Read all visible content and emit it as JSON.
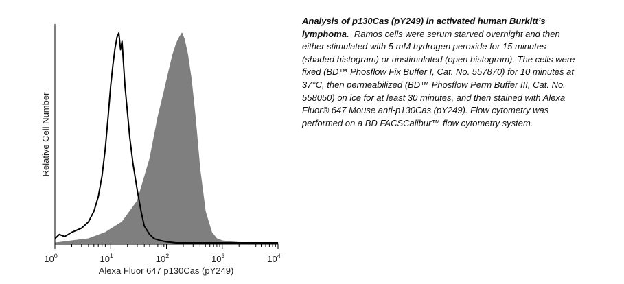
{
  "chart_data": {
    "type": "area",
    "title": "",
    "xlabel": "Alexa Fluor 647 p130Cas (pY249)",
    "ylabel": "Relative Cell Number",
    "xscale": "log",
    "xlim": [
      1,
      10000
    ],
    "x_tick_labels": [
      {
        "base": "10",
        "exp": "0"
      },
      {
        "base": "10",
        "exp": "1"
      },
      {
        "base": "10",
        "exp": "2"
      },
      {
        "base": "10",
        "exp": "3"
      },
      {
        "base": "10",
        "exp": "4"
      }
    ],
    "grid": false,
    "legend": "none",
    "colors": {
      "stimulated_fill": "#7f7f7f",
      "unstimulated_line": "#000000",
      "axis": "#000000"
    },
    "series": [
      {
        "style": "filled",
        "description_on_chart": "shaded histogram",
        "x": [
          1,
          2,
          4,
          8,
          16,
          30,
          50,
          70,
          90,
          110,
          130,
          150,
          170,
          190,
          210,
          240,
          280,
          330,
          400,
          500,
          650,
          800,
          1000,
          1500,
          2500,
          5000,
          10000
        ],
        "y": [
          0.0,
          0.01,
          0.02,
          0.05,
          0.1,
          0.2,
          0.4,
          0.6,
          0.72,
          0.82,
          0.9,
          0.95,
          0.98,
          1.0,
          0.97,
          0.9,
          0.78,
          0.6,
          0.35,
          0.15,
          0.05,
          0.02,
          0.01,
          0.005,
          0.0,
          0.0,
          0.0
        ]
      },
      {
        "style": "outline",
        "description_on_chart": "open histogram",
        "x": [
          1,
          1.2,
          1.5,
          2,
          3,
          4,
          5,
          6,
          7,
          8,
          9,
          10,
          11,
          12,
          13,
          14,
          15,
          16,
          17,
          18,
          20,
          22,
          25,
          30,
          35,
          40,
          50,
          60,
          80,
          100,
          150,
          300,
          1000,
          10000
        ],
        "y": [
          0.02,
          0.04,
          0.03,
          0.05,
          0.07,
          0.1,
          0.15,
          0.22,
          0.32,
          0.45,
          0.6,
          0.75,
          0.85,
          0.93,
          0.98,
          1.0,
          0.92,
          0.96,
          0.85,
          0.75,
          0.62,
          0.5,
          0.38,
          0.25,
          0.15,
          0.08,
          0.04,
          0.02,
          0.01,
          0.005,
          0.0,
          0.0,
          0.0,
          0.0
        ]
      }
    ]
  },
  "caption": {
    "bold_text": "Analysis of p130Cas (pY249) in activated human Burkitt’s lymphoma.",
    "body_text": "Ramos cells were serum starved overnight and then either stimulated with 5 mM hydrogen peroxide for 15 minutes (shaded histogram) or unstimulated (open histogram).  The cells were fixed (BD™ Phosflow Fix Buffer I, Cat. No. 557870) for 10 minutes at 37°C, then permeabilized (BD™ Phosflow Perm Buffer III, Cat. No. 558050) on ice for at least 30 minutes, and then stained with Alexa Fluor® 647 Mouse anti-p130Cas (pY249).  Flow cytometry was performed on a BD FACSCalibur™ flow cytometry system."
  }
}
